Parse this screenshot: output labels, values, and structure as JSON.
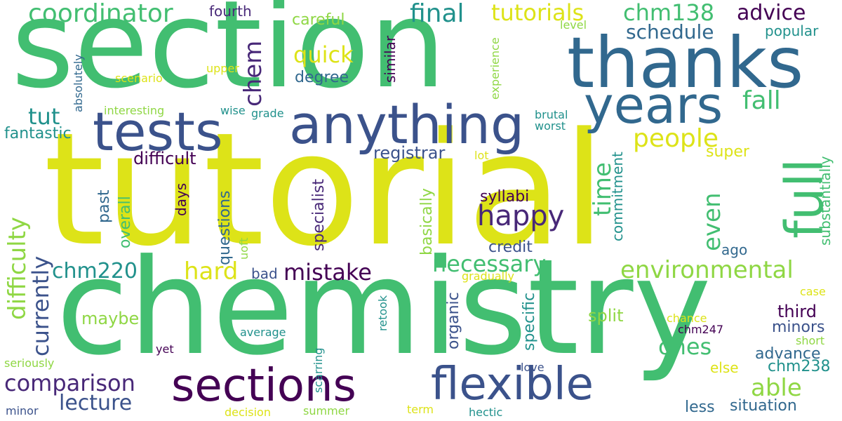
{
  "palette": {
    "yellow": "#dde318",
    "lime": "#8fd744",
    "green": "#42be71",
    "teal": "#21918c",
    "blue": "#31688e",
    "indigo": "#3b528b",
    "purple": "#440154",
    "violet": "#482878"
  },
  "words": [
    "section",
    "tutorial",
    "chemistry",
    "thanks",
    "tests",
    "anything",
    "years",
    "sections",
    "flexible",
    "full",
    "coordinator",
    "final",
    "tutorials",
    "chm138",
    "advice",
    "chem",
    "schedule",
    "popular",
    "quick",
    "careful",
    "fourth",
    "fall",
    "tut",
    "people",
    "fantastic",
    "difficult",
    "happy",
    "difficulty",
    "time",
    "even",
    "registrar",
    "super",
    "hard",
    "mistake",
    "environmental",
    "chm220",
    "currently",
    "necessary",
    "comparison",
    "lecture",
    "able",
    "ones",
    "split",
    "maybe",
    "minors",
    "third",
    "advance",
    "chm238",
    "situation",
    "less",
    "similar",
    "degree",
    "specific",
    "organic",
    "commitment",
    "past",
    "overall",
    "days",
    "questions",
    "specialist",
    "syllabi",
    "basically",
    "credit",
    "bad",
    "ago",
    "substantially",
    "upper",
    "scenario",
    "absolutely",
    "interesting",
    "wise",
    "grade",
    "experience",
    "level",
    "brutal",
    "worst",
    "lot",
    "gradually",
    "case",
    "chance",
    "chm247",
    "short",
    "else",
    "love",
    "average",
    "yet",
    "seriously",
    "minor",
    "decision",
    "summer",
    "term",
    "hectic",
    "retook",
    "scarring",
    "uoft"
  ]
}
